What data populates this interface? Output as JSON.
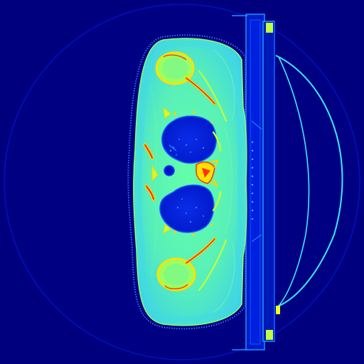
{
  "image": {
    "kind": "ct-axial-slice",
    "colormap": "jet",
    "colors": {
      "background": "#00007f",
      "fov_ring": "#0010c8",
      "soft_tissue": "#56f0b8",
      "soft_tissue_edge": "#a0ff60",
      "fat_layer": "#40d8e0",
      "air_lung": "#0018d8",
      "lung_vessel": "#2a6cff",
      "bone_cortex": "#ffd800",
      "bone_dense": "#ff3010",
      "bone_marrow": "#c8ff30",
      "table": "#0030ff",
      "table_edge": "#20a0ff",
      "immobilizer": "#40f0ff",
      "marker": "#c0ff40"
    }
  }
}
